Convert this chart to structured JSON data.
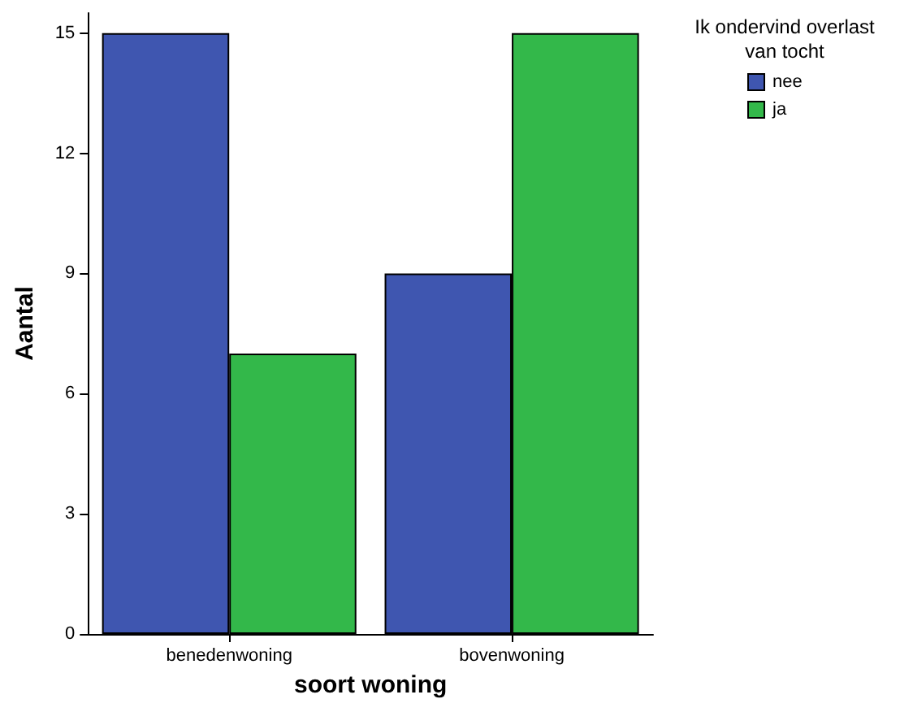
{
  "chart_data": {
    "type": "bar",
    "xlabel": "soort woning",
    "ylabel": "Aantal",
    "legend_title": "Ik ondervind overlast\nvan tocht",
    "categories": [
      "benedenwoning",
      "bovenwoning"
    ],
    "series": [
      {
        "name": "nee",
        "color": "#3f56b0",
        "values": [
          15,
          9
        ]
      },
      {
        "name": "ja",
        "color": "#33b84a",
        "values": [
          7,
          15
        ]
      }
    ],
    "ylim": [
      0,
      15.5
    ],
    "yticks": [
      0,
      3,
      6,
      9,
      12,
      15
    ],
    "grid": false,
    "legend": "top right"
  }
}
